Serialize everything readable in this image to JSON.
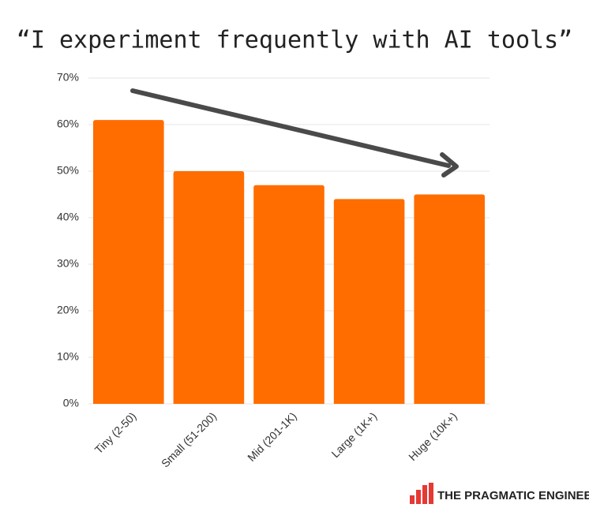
{
  "chart_data": {
    "type": "bar",
    "title": "“I experiment frequently with AI tools”",
    "categories": [
      "Tiny (2-50)",
      "Small (51-200)",
      "Mid (201-1K)",
      "Large (1K+)",
      "Huge (10K+)"
    ],
    "values": [
      61,
      50,
      47,
      44,
      45
    ],
    "color": "#ff6d00",
    "ylim": [
      0,
      70
    ],
    "yticks": [
      {
        "value": 0,
        "label": "0%"
      },
      {
        "value": 10,
        "label": "10%"
      },
      {
        "value": 20,
        "label": "20%"
      },
      {
        "value": 30,
        "label": "30%"
      },
      {
        "value": 40,
        "label": "40%"
      },
      {
        "value": 50,
        "label": "50%"
      },
      {
        "value": 60,
        "label": "60%"
      },
      {
        "value": 70,
        "label": "70%"
      }
    ],
    "grid": true
  },
  "brand": "THE PRAGMATIC ENGINEER"
}
